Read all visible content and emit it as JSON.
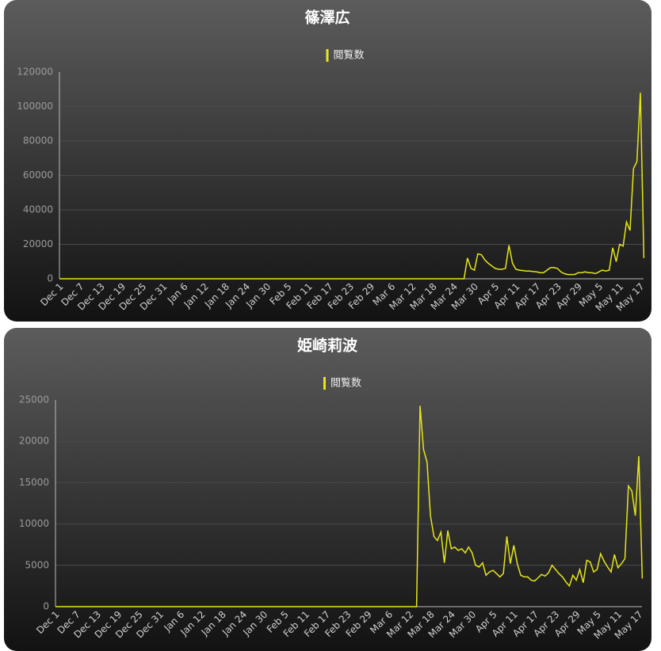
{
  "chart_data": [
    {
      "type": "line",
      "title": "篠澤広",
      "grid": true,
      "legend": "top",
      "categories": [
        "Dec 1",
        null,
        null,
        null,
        null,
        null,
        "Dec 7",
        null,
        null,
        null,
        null,
        null,
        "Dec 13",
        null,
        null,
        null,
        null,
        null,
        "Dec 19",
        null,
        null,
        null,
        null,
        null,
        "Dec 25",
        null,
        null,
        null,
        null,
        null,
        "Dec 31",
        null,
        null,
        null,
        null,
        null,
        "Jan 6",
        null,
        null,
        null,
        null,
        null,
        "Jan 12",
        null,
        null,
        null,
        null,
        null,
        "Jan 18",
        null,
        null,
        null,
        null,
        null,
        "Jan 24",
        null,
        null,
        null,
        null,
        null,
        "Jan 30",
        null,
        null,
        null,
        null,
        null,
        "Feb 5",
        null,
        null,
        null,
        null,
        null,
        "Feb 11",
        null,
        null,
        null,
        null,
        null,
        "Feb 17",
        null,
        null,
        null,
        null,
        null,
        "Feb 23",
        null,
        null,
        null,
        null,
        null,
        "Feb 29",
        null,
        null,
        null,
        null,
        null,
        "Mar 6",
        null,
        null,
        null,
        null,
        null,
        "Mar 12",
        null,
        null,
        null,
        null,
        null,
        "Mar 18",
        null,
        null,
        null,
        null,
        null,
        "Mar 24",
        null,
        null,
        null,
        null,
        null,
        "Mar 30",
        null,
        null,
        null,
        null,
        null,
        "Apr 5",
        null,
        null,
        null,
        null,
        null,
        "Apr 11",
        null,
        null,
        null,
        null,
        null,
        "Apr 17",
        null,
        null,
        null,
        null,
        null,
        "Apr 23",
        null,
        null,
        null,
        null,
        null,
        "Apr 29",
        null,
        null,
        null,
        null,
        null,
        "May 5",
        null,
        null,
        null,
        null,
        null,
        "May 11",
        null,
        null,
        null,
        null,
        null,
        "May 17",
        null
      ],
      "series": [
        {
          "name": "閲覧数",
          "color": "#e6e619",
          "values": [
            0,
            0,
            0,
            0,
            0,
            0,
            0,
            0,
            0,
            0,
            0,
            0,
            0,
            0,
            0,
            0,
            0,
            0,
            0,
            0,
            0,
            0,
            0,
            0,
            0,
            0,
            0,
            0,
            0,
            0,
            0,
            0,
            0,
            0,
            0,
            0,
            0,
            0,
            0,
            0,
            0,
            0,
            0,
            0,
            0,
            0,
            0,
            0,
            0,
            0,
            0,
            0,
            0,
            0,
            0,
            0,
            0,
            0,
            0,
            0,
            0,
            0,
            0,
            0,
            0,
            0,
            0,
            0,
            0,
            0,
            0,
            0,
            0,
            0,
            0,
            0,
            0,
            0,
            0,
            0,
            0,
            0,
            0,
            0,
            0,
            0,
            0,
            0,
            0,
            0,
            0,
            0,
            0,
            0,
            0,
            0,
            0,
            0,
            0,
            0,
            0,
            0,
            0,
            0,
            0,
            0,
            0,
            0,
            0,
            0,
            0,
            0,
            0,
            0,
            0,
            0,
            0,
            0,
            12000,
            6000,
            5000,
            14500,
            14000,
            11000,
            9000,
            7500,
            6000,
            5500,
            5500,
            6000,
            19500,
            9000,
            5500,
            5000,
            4800,
            4500,
            4500,
            4200,
            4000,
            3500,
            3500,
            5000,
            6500,
            6500,
            6000,
            4000,
            3000,
            2500,
            2500,
            2500,
            3500,
            3500,
            4000,
            3500,
            3500,
            3000,
            4000,
            5000,
            4500,
            5000,
            18000,
            10000,
            20000,
            19000,
            33000,
            28000,
            64000,
            68000,
            108000,
            12000
          ]
        }
      ],
      "ylim": [
        0,
        120000
      ],
      "yticks": [
        0,
        20000,
        40000,
        60000,
        80000,
        100000,
        120000
      ]
    },
    {
      "type": "line",
      "title": "姫崎莉波",
      "grid": true,
      "legend": "top",
      "categories": [
        "Dec 1",
        null,
        null,
        null,
        null,
        null,
        "Dec 7",
        null,
        null,
        null,
        null,
        null,
        "Dec 13",
        null,
        null,
        null,
        null,
        null,
        "Dec 19",
        null,
        null,
        null,
        null,
        null,
        "Dec 25",
        null,
        null,
        null,
        null,
        null,
        "Dec 31",
        null,
        null,
        null,
        null,
        null,
        "Jan 6",
        null,
        null,
        null,
        null,
        null,
        "Jan 12",
        null,
        null,
        null,
        null,
        null,
        "Jan 18",
        null,
        null,
        null,
        null,
        null,
        "Jan 24",
        null,
        null,
        null,
        null,
        null,
        "Jan 30",
        null,
        null,
        null,
        null,
        null,
        "Feb 5",
        null,
        null,
        null,
        null,
        null,
        "Feb 11",
        null,
        null,
        null,
        null,
        null,
        "Feb 17",
        null,
        null,
        null,
        null,
        null,
        "Feb 23",
        null,
        null,
        null,
        null,
        null,
        "Feb 29",
        null,
        null,
        null,
        null,
        null,
        "Mar 6",
        null,
        null,
        null,
        null,
        null,
        "Mar 12",
        null,
        null,
        null,
        null,
        null,
        "Mar 18",
        null,
        null,
        null,
        null,
        null,
        "Mar 24",
        null,
        null,
        null,
        null,
        null,
        "Mar 30",
        null,
        null,
        null,
        null,
        null,
        "Apr 5",
        null,
        null,
        null,
        null,
        null,
        "Apr 11",
        null,
        null,
        null,
        null,
        null,
        "Apr 17",
        null,
        null,
        null,
        null,
        null,
        "Apr 23",
        null,
        null,
        null,
        null,
        null,
        "Apr 29",
        null,
        null,
        null,
        null,
        null,
        "May 5",
        null,
        null,
        null,
        null,
        null,
        "May 11",
        null,
        null,
        null,
        null,
        null,
        "May 17",
        null
      ],
      "series": [
        {
          "name": "閲覧数",
          "color": "#e6e619",
          "values": [
            0,
            0,
            0,
            0,
            0,
            0,
            0,
            0,
            0,
            0,
            0,
            0,
            0,
            0,
            0,
            0,
            0,
            0,
            0,
            0,
            0,
            0,
            0,
            0,
            0,
            0,
            0,
            0,
            0,
            0,
            0,
            0,
            0,
            0,
            0,
            0,
            0,
            0,
            0,
            0,
            0,
            0,
            0,
            0,
            0,
            0,
            0,
            0,
            0,
            0,
            0,
            0,
            0,
            0,
            0,
            0,
            0,
            0,
            0,
            0,
            0,
            0,
            0,
            0,
            0,
            0,
            0,
            0,
            0,
            0,
            0,
            0,
            0,
            0,
            0,
            0,
            0,
            0,
            0,
            0,
            0,
            0,
            0,
            0,
            0,
            0,
            0,
            0,
            0,
            0,
            0,
            0,
            0,
            0,
            0,
            0,
            0,
            0,
            0,
            0,
            0,
            0,
            0,
            0,
            0,
            24300,
            19000,
            17500,
            11000,
            8500,
            8000,
            9000,
            5300,
            9200,
            7000,
            7200,
            6800,
            7000,
            6500,
            7200,
            6500,
            5000,
            4800,
            5300,
            3800,
            4200,
            4400,
            4000,
            3600,
            4000,
            8500,
            5200,
            7400,
            5200,
            3800,
            3600,
            3600,
            3200,
            3100,
            3500,
            3900,
            3700,
            4100,
            5000,
            4500,
            4000,
            3600,
            3000,
            2500,
            3800,
            3200,
            4500,
            2900,
            5600,
            5400,
            4200,
            4500,
            6400,
            5500,
            4800,
            4200,
            6300,
            4700,
            5200,
            5800,
            14600,
            14000,
            11000,
            18200,
            3400
          ]
        }
      ],
      "ylim": [
        0,
        25000
      ],
      "yticks": [
        0,
        5000,
        10000,
        15000,
        20000,
        25000
      ]
    }
  ]
}
